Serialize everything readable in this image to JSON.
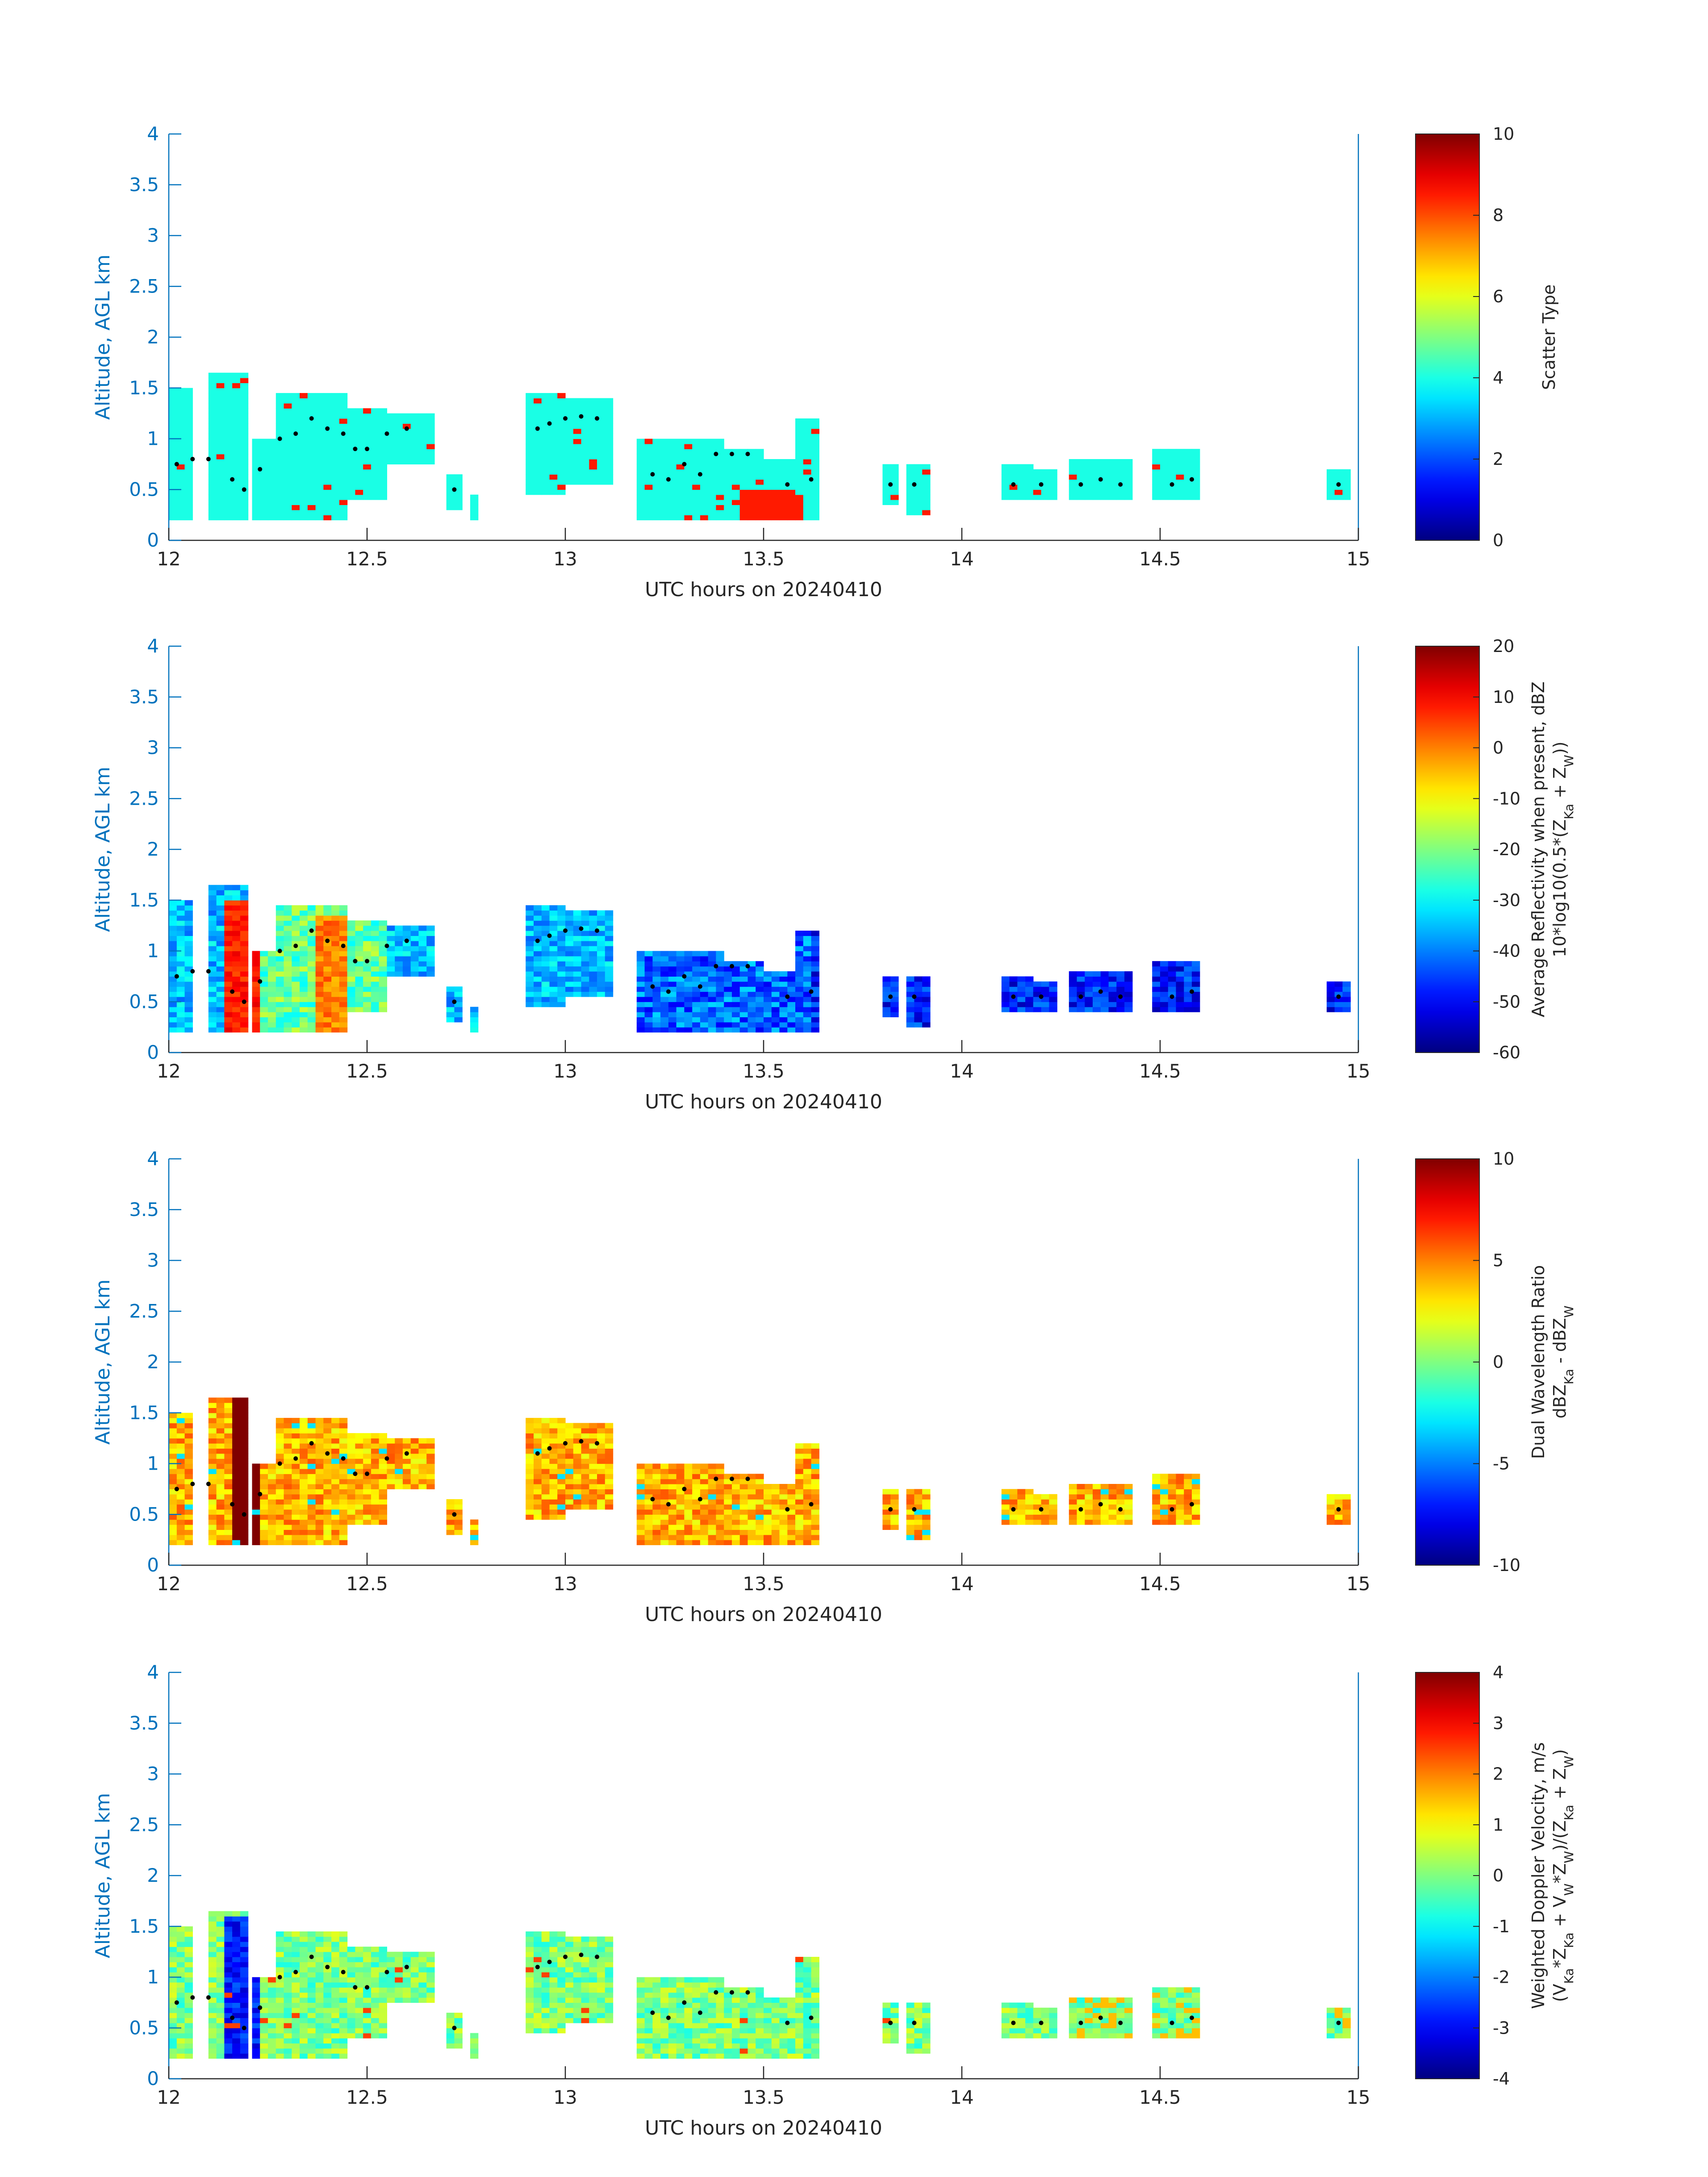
{
  "colors": {
    "axis_blue": "#0072BD",
    "text_dark": "#262626",
    "colorbar_frame": "#262626",
    "marker": "#000000",
    "colormap": "jet"
  },
  "chart_data": [
    {
      "type": "heatmap",
      "ylabel": "Altitude, AGL km",
      "xlabel": "UTC hours on 20240410",
      "xlim": [
        12,
        15
      ],
      "ylim": [
        0,
        4
      ],
      "x_ticks": [
        "12",
        "12.5",
        "13",
        "13.5",
        "14",
        "14.5",
        "15"
      ],
      "y_ticks": [
        "0",
        "0.5",
        "1",
        "1.5",
        "2",
        "2.5",
        "3",
        "3.5",
        "4"
      ],
      "colorbar_label_lines": [
        "Scatter Type"
      ],
      "clim": [
        0,
        10
      ],
      "colorbar_ticks": [
        "0",
        "2",
        "4",
        "6",
        "8",
        "10"
      ]
    },
    {
      "type": "heatmap",
      "ylabel": "Altitude, AGL km",
      "xlabel": "UTC hours on 20240410",
      "xlim": [
        12,
        15
      ],
      "ylim": [
        0,
        4
      ],
      "x_ticks": [
        "12",
        "12.5",
        "13",
        "13.5",
        "14",
        "14.5",
        "15"
      ],
      "y_ticks": [
        "0",
        "0.5",
        "1",
        "1.5",
        "2",
        "2.5",
        "3",
        "3.5",
        "4"
      ],
      "colorbar_label_lines": [
        "Average Reflectivity when present, dBZ",
        "10*log10(0.5*(Z_Ka + Z_W))"
      ],
      "clim": [
        -60,
        20
      ],
      "colorbar_ticks": [
        "-60",
        "-50",
        "-40",
        "-30",
        "-20",
        "-10",
        "0",
        "10",
        "20"
      ]
    },
    {
      "type": "heatmap",
      "ylabel": "Altitude, AGL km",
      "xlabel": "UTC hours on 20240410",
      "xlim": [
        12,
        15
      ],
      "ylim": [
        0,
        4
      ],
      "x_ticks": [
        "12",
        "12.5",
        "13",
        "13.5",
        "14",
        "14.5",
        "15"
      ],
      "y_ticks": [
        "0",
        "0.5",
        "1",
        "1.5",
        "2",
        "2.5",
        "3",
        "3.5",
        "4"
      ],
      "colorbar_label_lines": [
        "Dual Wavelength Ratio",
        "dBZ_Ka - dBZ_W"
      ],
      "clim": [
        -10,
        10
      ],
      "colorbar_ticks": [
        "-10",
        "-5",
        "0",
        "5",
        "10"
      ]
    },
    {
      "type": "heatmap",
      "ylabel": "Altitude, AGL km",
      "xlabel": "UTC hours on 20240410",
      "xlim": [
        12,
        15
      ],
      "ylim": [
        0,
        4
      ],
      "x_ticks": [
        "12",
        "12.5",
        "13",
        "13.5",
        "14",
        "14.5",
        "15"
      ],
      "y_ticks": [
        "0",
        "0.5",
        "1",
        "1.5",
        "2",
        "2.5",
        "3",
        "3.5",
        "4"
      ],
      "colorbar_label_lines": [
        "Weighted Doppler Velocity, m/s",
        "(V_Ka*Z_Ka + V_W*Z_W)/(Z_Ka + Z_W)"
      ],
      "clim": [
        -4,
        4
      ],
      "colorbar_ticks": [
        "-4",
        "-3",
        "-2",
        "-1",
        "0",
        "1",
        "2",
        "3",
        "4"
      ]
    }
  ]
}
